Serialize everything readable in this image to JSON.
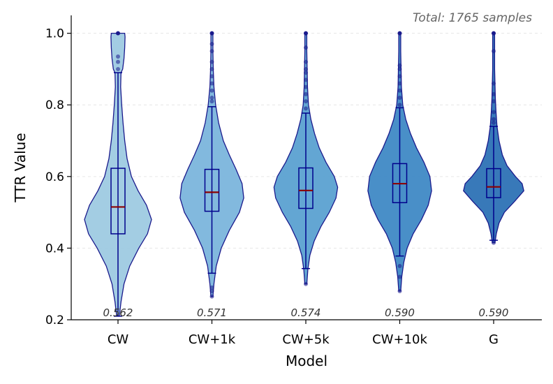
{
  "chart_data": {
    "type": "violin",
    "annotation": "Total: 1765 samples",
    "xlabel": "Model",
    "ylabel": "TTR Value",
    "ylim": [
      0.2,
      1.05
    ],
    "yticks": [
      "0.2",
      "0.4",
      "0.6",
      "0.8",
      "1.0"
    ],
    "grid": "horizontal dashed",
    "series": [
      {
        "category": "CW",
        "color": "#9ecae1",
        "mean_label": "0.562",
        "median": 0.515,
        "q1": 0.44,
        "q3": 0.623,
        "whisker_low": 0.21,
        "whisker_high": 0.89,
        "outliers": [
          0.9,
          0.92,
          0.935,
          1.0
        ],
        "profile": [
          [
            0.21,
            0.004
          ],
          [
            0.25,
            0.009
          ],
          [
            0.3,
            0.018
          ],
          [
            0.35,
            0.035
          ],
          [
            0.4,
            0.062
          ],
          [
            0.44,
            0.088
          ],
          [
            0.48,
            0.1
          ],
          [
            0.52,
            0.085
          ],
          [
            0.56,
            0.06
          ],
          [
            0.6,
            0.04
          ],
          [
            0.65,
            0.027
          ],
          [
            0.7,
            0.02
          ],
          [
            0.75,
            0.015
          ],
          [
            0.8,
            0.011
          ],
          [
            0.85,
            0.008
          ],
          [
            0.89,
            0.009
          ],
          [
            0.9,
            0.014
          ],
          [
            0.93,
            0.018
          ],
          [
            0.96,
            0.02
          ],
          [
            0.99,
            0.021
          ],
          [
            1.0,
            0.02
          ]
        ]
      },
      {
        "category": "CW+1k",
        "color": "#7bb5dc",
        "mean_label": "0.571",
        "median": 0.556,
        "q1": 0.503,
        "q3": 0.62,
        "whisker_low": 0.33,
        "whisker_high": 0.795,
        "outliers": [
          0.265,
          0.28,
          0.29,
          0.81,
          0.82,
          0.84,
          0.86,
          0.88,
          0.9,
          0.92,
          0.95,
          0.97,
          1.0
        ],
        "profile": [
          [
            0.265,
            0.003
          ],
          [
            0.3,
            0.006
          ],
          [
            0.35,
            0.013
          ],
          [
            0.4,
            0.028
          ],
          [
            0.45,
            0.052
          ],
          [
            0.5,
            0.082
          ],
          [
            0.54,
            0.095
          ],
          [
            0.58,
            0.09
          ],
          [
            0.62,
            0.072
          ],
          [
            0.66,
            0.052
          ],
          [
            0.7,
            0.034
          ],
          [
            0.75,
            0.02
          ],
          [
            0.8,
            0.011
          ],
          [
            0.85,
            0.006
          ],
          [
            0.9,
            0.004
          ],
          [
            0.95,
            0.003
          ],
          [
            1.0,
            0.003
          ]
        ]
      },
      {
        "category": "CW+5k",
        "color": "#5ba1d1",
        "mean_label": "0.574",
        "median": 0.561,
        "q1": 0.511,
        "q3": 0.624,
        "whisker_low": 0.343,
        "whisker_high": 0.777,
        "outliers": [
          0.3,
          0.79,
          0.81,
          0.83,
          0.85,
          0.87,
          0.89,
          0.9,
          0.92,
          0.96,
          1.0
        ],
        "profile": [
          [
            0.3,
            0.003
          ],
          [
            0.34,
            0.006
          ],
          [
            0.38,
            0.012
          ],
          [
            0.42,
            0.025
          ],
          [
            0.46,
            0.045
          ],
          [
            0.5,
            0.07
          ],
          [
            0.54,
            0.09
          ],
          [
            0.57,
            0.095
          ],
          [
            0.6,
            0.085
          ],
          [
            0.64,
            0.06
          ],
          [
            0.68,
            0.04
          ],
          [
            0.72,
            0.026
          ],
          [
            0.76,
            0.015
          ],
          [
            0.8,
            0.008
          ],
          [
            0.85,
            0.005
          ],
          [
            0.9,
            0.004
          ],
          [
            0.95,
            0.003
          ],
          [
            1.0,
            0.003
          ]
        ]
      },
      {
        "category": "CW+10k",
        "color": "#3f89c5",
        "mean_label": "0.590",
        "median": 0.58,
        "q1": 0.527,
        "q3": 0.636,
        "whisker_low": 0.378,
        "whisker_high": 0.792,
        "outliers": [
          0.28,
          0.32,
          0.35,
          0.8,
          0.82,
          0.84,
          0.86,
          0.88,
          0.9,
          0.91,
          1.0
        ],
        "profile": [
          [
            0.28,
            0.003
          ],
          [
            0.32,
            0.006
          ],
          [
            0.36,
            0.012
          ],
          [
            0.4,
            0.022
          ],
          [
            0.44,
            0.04
          ],
          [
            0.48,
            0.065
          ],
          [
            0.52,
            0.085
          ],
          [
            0.56,
            0.095
          ],
          [
            0.6,
            0.09
          ],
          [
            0.64,
            0.072
          ],
          [
            0.68,
            0.05
          ],
          [
            0.72,
            0.032
          ],
          [
            0.76,
            0.018
          ],
          [
            0.8,
            0.009
          ],
          [
            0.85,
            0.005
          ],
          [
            0.9,
            0.004
          ],
          [
            0.95,
            0.003
          ],
          [
            1.0,
            0.003
          ]
        ]
      },
      {
        "category": "G",
        "color": "#2d72b5",
        "mean_label": "0.590",
        "median": 0.571,
        "q1": 0.541,
        "q3": 0.622,
        "whisker_low": 0.422,
        "whisker_high": 0.74,
        "outliers": [
          0.415,
          0.75,
          0.76,
          0.78,
          0.81,
          0.83,
          0.86,
          0.95,
          1.0
        ],
        "profile": [
          [
            0.415,
            0.004
          ],
          [
            0.44,
            0.008
          ],
          [
            0.47,
            0.016
          ],
          [
            0.5,
            0.032
          ],
          [
            0.53,
            0.062
          ],
          [
            0.56,
            0.09
          ],
          [
            0.58,
            0.085
          ],
          [
            0.6,
            0.065
          ],
          [
            0.63,
            0.04
          ],
          [
            0.66,
            0.026
          ],
          [
            0.7,
            0.016
          ],
          [
            0.74,
            0.01
          ],
          [
            0.78,
            0.007
          ],
          [
            0.82,
            0.005
          ],
          [
            0.86,
            0.004
          ],
          [
            0.9,
            0.003
          ],
          [
            0.95,
            0.003
          ],
          [
            1.0,
            0.003
          ]
        ]
      }
    ]
  }
}
